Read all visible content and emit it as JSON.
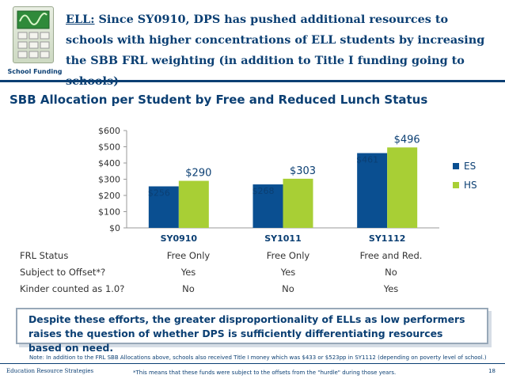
{
  "badge": {
    "label": "School Funding"
  },
  "headline": {
    "lead": "ELL:",
    "text": " Since SY0910, DPS has pushed additional resources to schools with higher concentrations of ELL students by increasing the SBB FRL weighting (in addition to Title I funding going to schools)"
  },
  "chart_title": "SBB Allocation per Student by Free and Reduced Lunch Status",
  "chart_data": {
    "type": "bar",
    "categories": [
      "SY0910",
      "SY1011",
      "SY1112"
    ],
    "series": [
      {
        "name": "ES",
        "values": [
          256,
          268,
          461
        ],
        "color": "#0a4f91",
        "labels": [
          "$256",
          "$268",
          "$461"
        ]
      },
      {
        "name": "HS",
        "values": [
          290,
          303,
          496
        ],
        "color": "#a8cf35",
        "labels": [
          "$290",
          "$303",
          "$496"
        ]
      }
    ],
    "ylim": [
      0,
      600
    ],
    "yticks": [
      0,
      100,
      200,
      300,
      400,
      500,
      600
    ],
    "ytick_labels": [
      "$0",
      "$100",
      "$200",
      "$300",
      "$400",
      "$500",
      "$600"
    ],
    "legend": "right",
    "title": "SBB Allocation per Student by Free and Reduced Lunch Status"
  },
  "table": {
    "rows": [
      {
        "label": "FRL Status",
        "values": [
          "Free Only",
          "Free Only",
          "Free and Red."
        ]
      },
      {
        "label": "Subject to Offset*?",
        "values": [
          "Yes",
          "Yes",
          "No"
        ]
      },
      {
        "label": "Kinder counted as 1.0?",
        "values": [
          "No",
          "No",
          "Yes"
        ]
      }
    ]
  },
  "callout": "Despite these efforts, the greater disproportionality of ELLs  as low performers raises the question of whether DPS is sufficiently differentiating resources based on need.",
  "note": "Note: In addition to the FRL SBB Allocations above, schools also received Title I money which was $433 or $523pp in SY1112 (depending on poverty level of school.)",
  "footer": {
    "org": "Education Resource Strategies",
    "footnote": "*This means that these funds were subject to the offsets from the \"hurdle\" during those years.",
    "page": "18"
  }
}
